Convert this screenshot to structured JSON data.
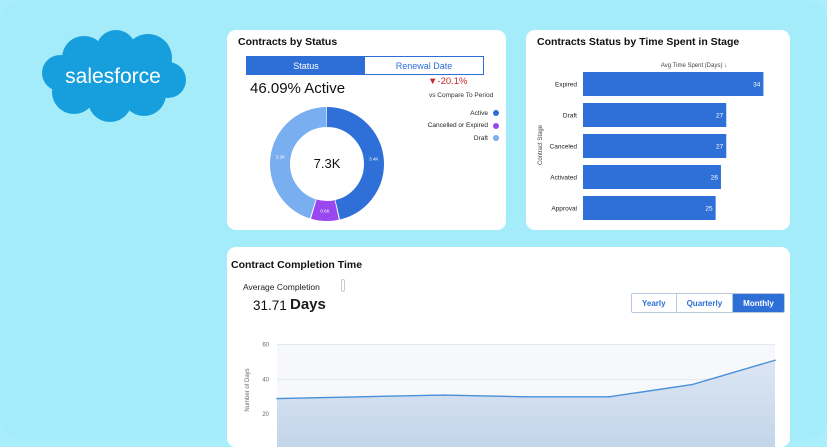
{
  "brand": {
    "name": "salesforce",
    "color": "#169fdc"
  },
  "contracts_by_status": {
    "title": "Contracts by Status",
    "tabs": [
      {
        "label": "Status",
        "active": true
      },
      {
        "label": "Renewal Date",
        "active": false
      }
    ],
    "headline_pct": "46.09% Active",
    "delta": "▼-20.1%",
    "delta_caption": "vs Compare To Period",
    "center_value": "7.3K",
    "slice_labels": {
      "active": "3.4K",
      "cancelled": "0.6K",
      "draft": "3.3K"
    },
    "legend": [
      {
        "label": "Active",
        "color": "#2e6fd8"
      },
      {
        "label": "Cancelled or Expired",
        "color": "#9848ee"
      },
      {
        "label": "Draft",
        "color": "#79aef0"
      }
    ]
  },
  "time_in_stage": {
    "title": "Contracts Status by Time Spent in Stage",
    "x_axis_label": "Avg Time Spent (Days) ↓",
    "y_axis_label": "Contract Stage"
  },
  "completion": {
    "title": "Contract Completion Time",
    "avg_label": "Average Completion",
    "avg_value": "31.71",
    "avg_unit": "Days",
    "periods": [
      {
        "label": "Yearly",
        "active": false
      },
      {
        "label": "Quarterly",
        "active": false
      },
      {
        "label": "Monthly",
        "active": true
      }
    ],
    "y_axis_label": "Number of Days"
  },
  "chart_data": [
    {
      "type": "pie",
      "categories": [
        "Active",
        "Cancelled or Expired",
        "Draft"
      ],
      "values": [
        3.4,
        0.6,
        3.3
      ],
      "units": "K"
    },
    {
      "type": "bar",
      "orientation": "horizontal",
      "categories": [
        "Expired",
        "Draft",
        "Canceled",
        "Activated",
        "Approval"
      ],
      "values": [
        34,
        27,
        27,
        26,
        25
      ],
      "xlim": [
        0,
        36
      ],
      "title": "Contracts Status by Time Spent in Stage",
      "xlabel": "Avg Time Spent (Days) ↓",
      "ylabel": "Contract Stage"
    },
    {
      "type": "area",
      "y_ticks": [
        20,
        40,
        60
      ],
      "ylim": [
        0,
        60
      ],
      "values": [
        29,
        30,
        31,
        30,
        30,
        37,
        51
      ],
      "ylabel": "Number of Days",
      "grid": true
    }
  ]
}
